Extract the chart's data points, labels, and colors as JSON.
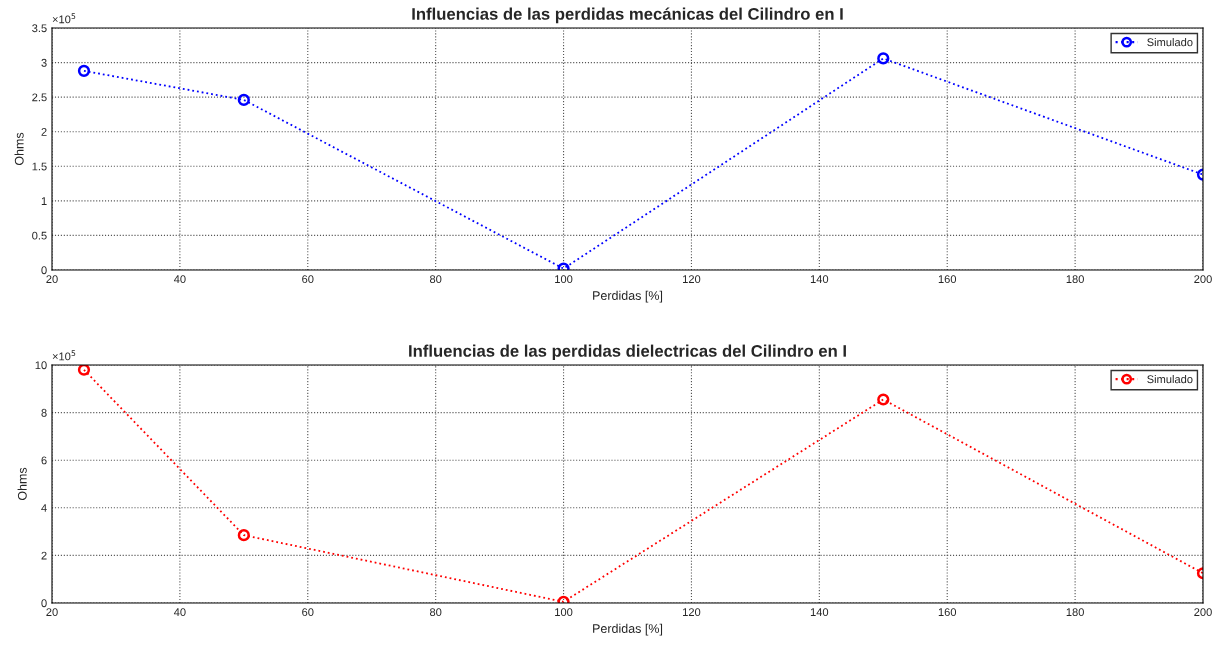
{
  "chart_data": [
    {
      "type": "line",
      "title": "Influencias de las perdidas mecánicas del Cilindro en I",
      "xlabel": "Perdidas [%]",
      "ylabel": "Ohms",
      "x": [
        25,
        50,
        100,
        150,
        200
      ],
      "series": [
        {
          "name": "Simulado",
          "color": "#0000ff",
          "values": [
            2.88,
            2.46,
            0.02,
            3.06,
            1.38
          ]
        }
      ],
      "xlim": [
        20,
        200
      ],
      "xticks": [
        20,
        40,
        60,
        80,
        100,
        120,
        140,
        160,
        180,
        200
      ],
      "ylim": [
        0,
        3.5
      ],
      "yticks": [
        0,
        0.5,
        1,
        1.5,
        2,
        2.5,
        3,
        3.5
      ],
      "annotations": [
        "×10$^{5}$"
      ],
      "grid": true,
      "legend": "top right",
      "marker": "circle",
      "line_style": "dotted"
    },
    {
      "type": "line",
      "title": "Influencias de las perdidas dielectricas del Cilindro en I",
      "xlabel": "Perdidas [%]",
      "ylabel": "Ohms",
      "x": [
        25,
        50,
        100,
        150,
        200
      ],
      "series": [
        {
          "name": "Simulado",
          "color": "#ff0000",
          "values": [
            9.8,
            2.85,
            0.05,
            8.55,
            1.25
          ]
        }
      ],
      "xlim": [
        20,
        200
      ],
      "xticks": [
        20,
        40,
        60,
        80,
        100,
        120,
        140,
        160,
        180,
        200
      ],
      "ylim": [
        0,
        10
      ],
      "yticks": [
        0,
        2,
        4,
        6,
        8,
        10
      ],
      "annotations": [
        "×10$^{5}$"
      ],
      "grid": true,
      "legend": "top right",
      "marker": "circle",
      "line_style": "dotted"
    }
  ]
}
